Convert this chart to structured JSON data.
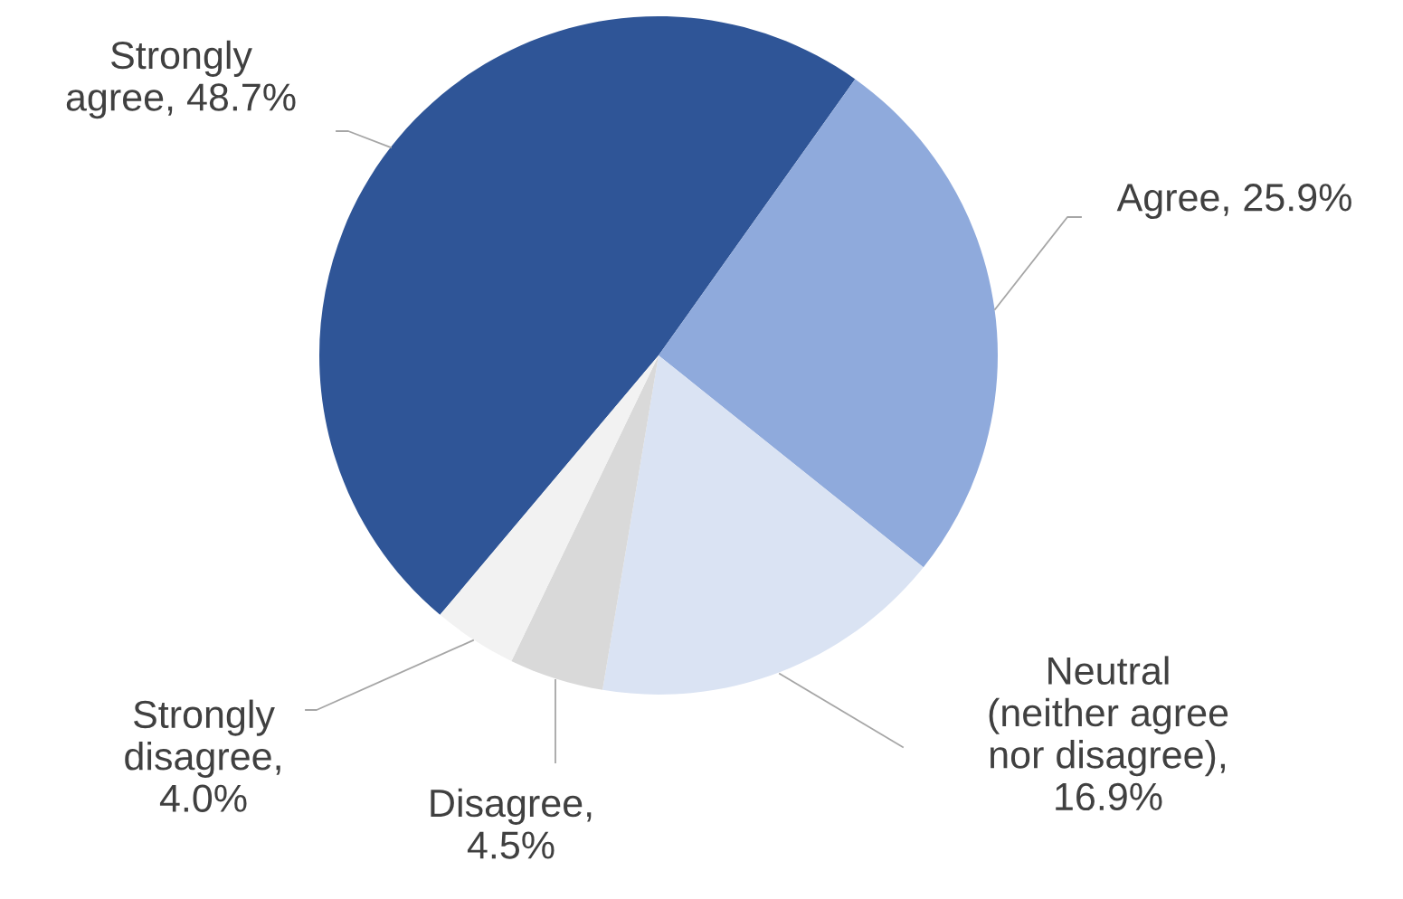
{
  "chart_data": {
    "type": "pie",
    "categories": [
      "Strongly agree, 48.7%",
      "Agree, 25.9%",
      "Neutral (neither agree nor disagree), 16.9%",
      "Disagree, 4.5%",
      "Strongly disagree, 4.0%"
    ],
    "values": [
      48.7,
      25.9,
      16.9,
      4.5,
      4.0
    ],
    "colors": [
      "#2f5597",
      "#8faadc",
      "#dae3f3",
      "#d9d9d9",
      "#f2f2f2"
    ],
    "legend": false
  }
}
